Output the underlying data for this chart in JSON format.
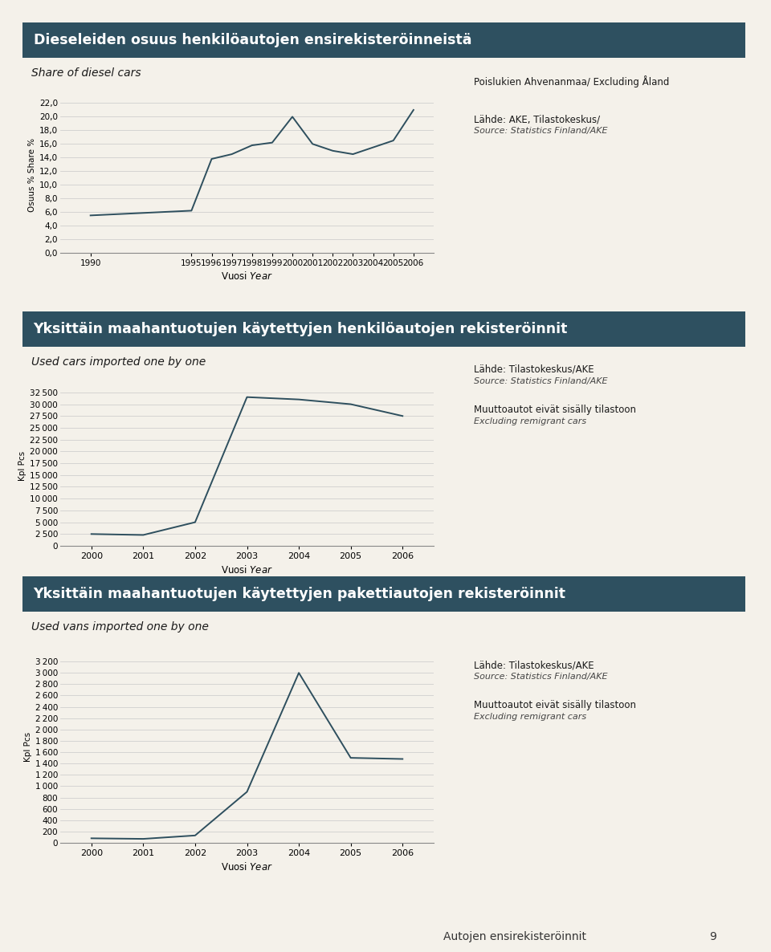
{
  "background_color": "#f4f1ea",
  "header_color": "#2e5060",
  "header_text_color": "#ffffff",
  "line_color": "#2e4f5e",
  "chart1": {
    "header": "Dieseleiden osuus henkilöautojen ensirekisteröinneistä",
    "subtitle": "Share of diesel cars",
    "years": [
      1990,
      1995,
      1996,
      1997,
      1998,
      1999,
      2000,
      2001,
      2002,
      2003,
      2004,
      2005,
      2006
    ],
    "values": [
      5.5,
      6.2,
      13.8,
      14.5,
      15.8,
      16.2,
      20.0,
      16.0,
      15.0,
      14.5,
      15.5,
      16.5,
      21.0
    ],
    "ylabel": "Osuus % Share %",
    "xlabel": "Vuosi Year",
    "yticks": [
      0.0,
      2.0,
      4.0,
      6.0,
      8.0,
      10.0,
      12.0,
      14.0,
      16.0,
      18.0,
      20.0,
      22.0
    ],
    "ylim": [
      0,
      23
    ],
    "ann1": "Poislukien Ahvenanmaa/ Excluding Åland",
    "ann2": "Lähde: AKE, Tilastokeskus/",
    "ann3": "Source: Statistics Finland/AKE"
  },
  "chart2": {
    "header": "Yksittäin maahantuotujen käytettyjen henkilöautojen rekisteröinnit",
    "subtitle": "Used cars imported one by one",
    "years": [
      2000,
      2001,
      2002,
      2003,
      2004,
      2005,
      2006
    ],
    "values": [
      2500,
      2300,
      5000,
      31500,
      31000,
      30000,
      27500
    ],
    "ylabel": "Kpl Pcs",
    "xlabel": "Vuosi Year",
    "yticks": [
      0,
      2500,
      5000,
      7500,
      10000,
      12500,
      15000,
      17500,
      20000,
      22500,
      25000,
      27500,
      30000,
      32500
    ],
    "ylim": [
      0,
      34000
    ],
    "ann1": "Lähde: Tilastokeskus/AKE",
    "ann2": "Source: Statistics Finland/AKE",
    "ann3": "Muuttoautot eivät sisälly tilastoon",
    "ann4": "Excluding remigrant cars"
  },
  "chart3": {
    "header": "Yksittäin maahantuotujen käytettyjen pakettiautojen rekisteröinnit",
    "subtitle": "Used vans imported one by one",
    "years": [
      2000,
      2001,
      2002,
      2003,
      2004,
      2005,
      2006
    ],
    "values": [
      80,
      70,
      130,
      900,
      3000,
      1500,
      1480
    ],
    "ylabel": "Kpl Pcs",
    "xlabel": "Vuosi Year",
    "yticks": [
      0,
      200,
      400,
      600,
      800,
      1000,
      1200,
      1400,
      1600,
      1800,
      2000,
      2200,
      2400,
      2600,
      2800,
      3000,
      3200
    ],
    "ylim": [
      0,
      3400
    ],
    "ann1": "Lähde: Tilastokeskus/AKE",
    "ann2": "Source: Statistics Finland/AKE",
    "ann3": "Muuttoautot eivät sisälly tilastoon",
    "ann4": "Excluding remigrant cars"
  },
  "footer_text": "Autojen ensirekisteröinnit",
  "footer_page": "9"
}
